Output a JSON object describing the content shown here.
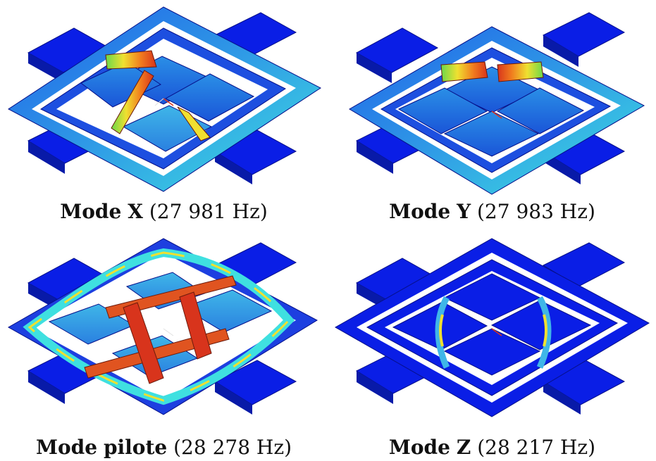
{
  "palette": {
    "base": "#0a1ee6",
    "mesh": "#06108a",
    "frame": "#1c6fe0",
    "mass": "#2a8fe6",
    "highlight": "#3fe0e0",
    "green": "#6ad84a",
    "yellow": "#f0e030",
    "orange": "#f07a1e",
    "red": "#d8341c"
  },
  "panels": [
    {
      "id": "mode-x",
      "mode_word": "Mode",
      "mode_name": "X",
      "freq": "(27 981 Hz)"
    },
    {
      "id": "mode-y",
      "mode_word": "Mode",
      "mode_name": "Y",
      "freq": "(27 983 Hz)"
    },
    {
      "id": "mode-pilote",
      "mode_word": "Mode",
      "mode_name": "pilote",
      "freq": "(28 278 Hz)"
    },
    {
      "id": "mode-z",
      "mode_word": "Mode",
      "mode_name": "Z",
      "freq": "(28 217 Hz)"
    }
  ]
}
